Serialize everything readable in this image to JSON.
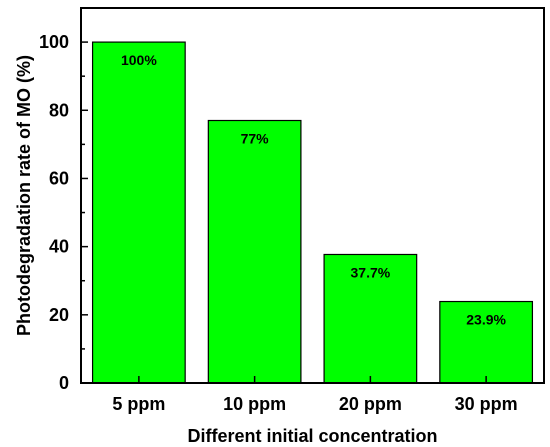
{
  "chart_data": {
    "type": "bar",
    "categories": [
      "5 ppm",
      "10 ppm",
      "20 ppm",
      "30 ppm"
    ],
    "values": [
      100,
      77,
      37.7,
      23.9
    ],
    "data_labels": [
      "100%",
      "77%",
      "37.7%",
      "23.9%"
    ],
    "xlabel": "Different initial concentration",
    "ylabel": "Photodegradation rate of MO (%)",
    "ylim": [
      0,
      110
    ],
    "yticks": [
      0,
      20,
      40,
      60,
      80,
      100
    ],
    "bar_color": "#00ff00",
    "grid": false,
    "legend": "none"
  }
}
